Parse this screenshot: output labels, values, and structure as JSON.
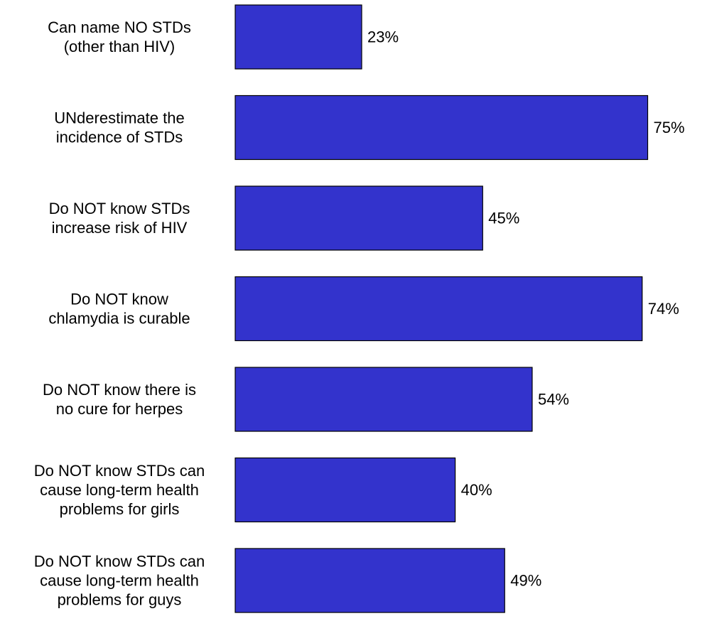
{
  "chart_data": {
    "type": "bar",
    "orientation": "horizontal",
    "categories": [
      [
        "Can name NO STDs",
        "(other than HIV)"
      ],
      [
        "UNderestimate the",
        "incidence of STDs"
      ],
      [
        "Do NOT know STDs",
        "increase risk of HIV"
      ],
      [
        "Do NOT know",
        "chlamydia is curable"
      ],
      [
        "Do NOT know there is",
        "no cure for herpes"
      ],
      [
        "Do NOT know STDs can",
        "cause long-term health",
        "problems for girls"
      ],
      [
        "Do NOT know STDs can",
        "cause long-term health",
        "problems for guys"
      ]
    ],
    "values": [
      23,
      75,
      45,
      74,
      54,
      40,
      49
    ],
    "value_labels": [
      "23%",
      "75%",
      "45%",
      "74%",
      "54%",
      "40%",
      "49%"
    ],
    "xlim": [
      0,
      100
    ],
    "grid": false,
    "bar_color": "#3333cc"
  }
}
